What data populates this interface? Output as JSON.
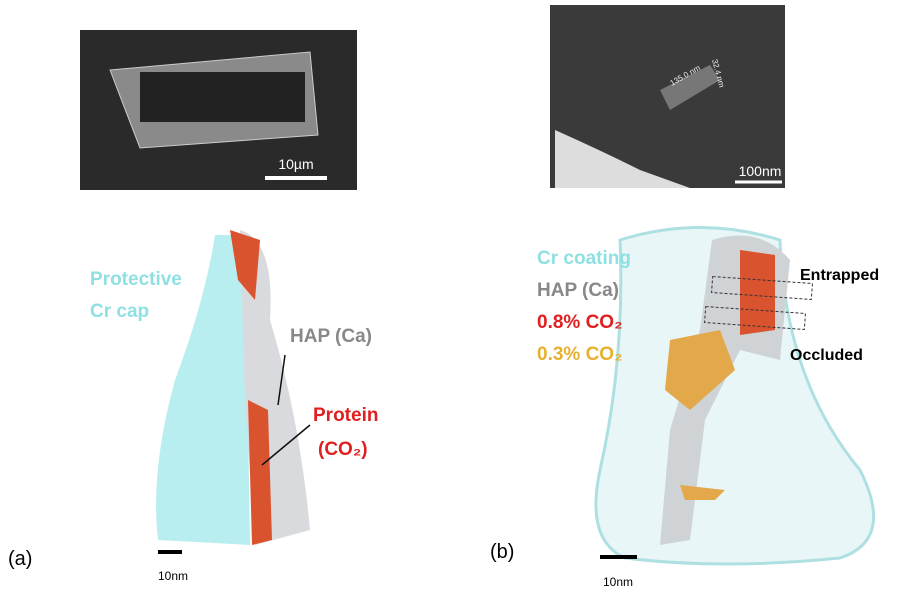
{
  "panel_a": {
    "label": "(a)",
    "sem_scale": "10µm",
    "protective": [
      "Protective",
      "Cr cap"
    ],
    "hap": "HAP (Ca)",
    "protein": [
      "Protein",
      "(CO₂)"
    ],
    "scale": "10nm"
  },
  "panel_b": {
    "label": "(b)",
    "sem_scale": "100nm",
    "measures": [
      "135.0 nm",
      "32.4 nm"
    ],
    "legend": [
      "Cr coating",
      "HAP (Ca)",
      "0.8% CO₂",
      "0.3% CO₂"
    ],
    "entrapped": "Entrapped",
    "occluded": "Occluded",
    "scale": "10nm"
  }
}
